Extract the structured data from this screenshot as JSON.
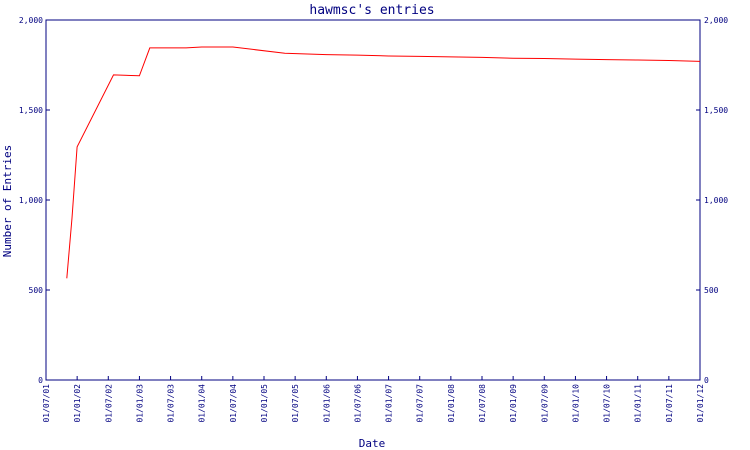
{
  "chart_data": {
    "type": "line",
    "title": "hawmsc's entries",
    "xlabel": "Date",
    "ylabel": "Number of Entries",
    "ylim": [
      0,
      2000
    ],
    "y_ticks": [
      {
        "value": 0,
        "label": "0"
      },
      {
        "value": 500,
        "label": "500"
      },
      {
        "value": 1000,
        "label": "1,000"
      },
      {
        "value": 1500,
        "label": "1,500"
      },
      {
        "value": 2000,
        "label": "2,000"
      }
    ],
    "x_ticks": [
      "01/07/01",
      "01/01/02",
      "01/07/02",
      "01/01/03",
      "01/07/03",
      "01/01/04",
      "01/07/04",
      "01/01/05",
      "01/07/05",
      "01/01/06",
      "01/07/06",
      "01/01/07",
      "01/07/07",
      "01/01/08",
      "01/07/08",
      "01/01/09",
      "01/07/09",
      "01/01/10",
      "01/07/10",
      "01/01/11",
      "01/07/11",
      "01/01/12"
    ],
    "grid": false,
    "colors": {
      "line": "#ff0000",
      "axis": "#000080",
      "text": "#000080"
    },
    "series": [
      {
        "points": [
          {
            "x": "01/11/01",
            "y": 565
          },
          {
            "x": "01/12/01",
            "y": 900
          },
          {
            "x": "01/01/02",
            "y": 1295
          },
          {
            "x": "01/08/02",
            "y": 1695
          },
          {
            "x": "01/01/03",
            "y": 1690
          },
          {
            "x": "01/03/03",
            "y": 1845
          },
          {
            "x": "01/10/03",
            "y": 1845
          },
          {
            "x": "01/01/04",
            "y": 1850
          },
          {
            "x": "01/07/04",
            "y": 1850
          },
          {
            "x": "01/05/05",
            "y": 1815
          },
          {
            "x": "01/01/06",
            "y": 1808
          },
          {
            "x": "01/07/06",
            "y": 1805
          },
          {
            "x": "01/01/07",
            "y": 1800
          },
          {
            "x": "01/07/07",
            "y": 1798
          },
          {
            "x": "01/01/08",
            "y": 1795
          },
          {
            "x": "01/07/08",
            "y": 1792
          },
          {
            "x": "01/01/09",
            "y": 1788
          },
          {
            "x": "01/07/09",
            "y": 1786
          },
          {
            "x": "01/01/10",
            "y": 1783
          },
          {
            "x": "01/07/10",
            "y": 1780
          },
          {
            "x": "01/01/11",
            "y": 1778
          },
          {
            "x": "01/07/11",
            "y": 1775
          },
          {
            "x": "01/01/12",
            "y": 1770
          }
        ]
      }
    ]
  }
}
